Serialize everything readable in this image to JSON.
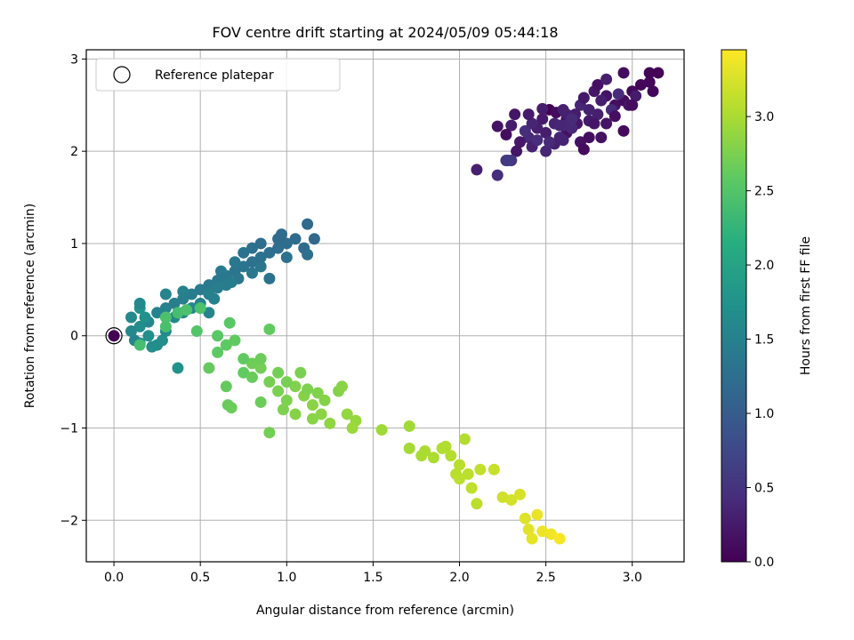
{
  "chart_data": {
    "type": "scatter",
    "title": "FOV centre drift starting at 2024/05/09 05:44:18",
    "xlabel": "Angular distance from reference (arcmin)",
    "ylabel": "Rotation from reference (arcmin)",
    "xlim": [
      -0.16,
      3.3
    ],
    "ylim": [
      -2.45,
      3.1
    ],
    "xticks": [
      0.0,
      0.5,
      1.0,
      1.5,
      2.0,
      2.5,
      3.0
    ],
    "xtick_labels": [
      "0.0",
      "0.5",
      "1.0",
      "1.5",
      "2.0",
      "2.5",
      "3.0"
    ],
    "yticks": [
      -2,
      -1,
      0,
      1,
      2,
      3
    ],
    "ytick_labels": [
      "−2",
      "−1",
      "0",
      "1",
      "2",
      "3"
    ],
    "grid": true,
    "legend": {
      "position": "top-left",
      "entries": [
        "Reference platepar"
      ]
    },
    "colorbar": {
      "label": "Hours from first FF file",
      "range": [
        0.0,
        3.45
      ],
      "ticks": [
        0.0,
        0.5,
        1.0,
        1.5,
        2.0,
        2.5,
        3.0
      ],
      "tick_labels": [
        "0.0",
        "0.5",
        "1.0",
        "1.5",
        "2.0",
        "2.5",
        "3.0"
      ],
      "colormap": "viridis"
    },
    "reference_point": {
      "x": 0.0,
      "y": 0.0
    },
    "points": [
      {
        "x": 2.52,
        "y": 2.45,
        "h": 0.0
      },
      {
        "x": 2.62,
        "y": 2.35,
        "h": 0.05
      },
      {
        "x": 2.56,
        "y": 2.42,
        "h": 0.1
      },
      {
        "x": 2.62,
        "y": 2.2,
        "h": 0.15
      },
      {
        "x": 2.68,
        "y": 2.3,
        "h": 0.2
      },
      {
        "x": 2.75,
        "y": 2.33,
        "h": 0.25
      },
      {
        "x": 2.8,
        "y": 2.4,
        "h": 0.3
      },
      {
        "x": 2.58,
        "y": 2.15,
        "h": 0.35
      },
      {
        "x": 2.9,
        "y": 2.5,
        "h": 0.15
      },
      {
        "x": 2.95,
        "y": 2.55,
        "h": 0.1
      },
      {
        "x": 3.0,
        "y": 2.65,
        "h": 0.08
      },
      {
        "x": 3.05,
        "y": 2.72,
        "h": 0.05
      },
      {
        "x": 3.1,
        "y": 2.85,
        "h": 0.03
      },
      {
        "x": 3.15,
        "y": 2.85,
        "h": 0.02
      },
      {
        "x": 3.1,
        "y": 2.75,
        "h": 0.06
      },
      {
        "x": 3.12,
        "y": 2.65,
        "h": 0.07
      },
      {
        "x": 2.95,
        "y": 2.85,
        "h": 0.12
      },
      {
        "x": 2.85,
        "y": 2.6,
        "h": 0.18
      },
      {
        "x": 2.78,
        "y": 2.65,
        "h": 0.22
      },
      {
        "x": 2.82,
        "y": 2.55,
        "h": 0.28
      },
      {
        "x": 2.75,
        "y": 2.45,
        "h": 0.32
      },
      {
        "x": 2.7,
        "y": 2.5,
        "h": 0.36
      },
      {
        "x": 2.88,
        "y": 2.45,
        "h": 0.4
      },
      {
        "x": 2.92,
        "y": 2.62,
        "h": 0.42
      },
      {
        "x": 2.98,
        "y": 2.5,
        "h": 0.2
      },
      {
        "x": 3.02,
        "y": 2.6,
        "h": 0.25
      },
      {
        "x": 2.8,
        "y": 2.72,
        "h": 0.15
      },
      {
        "x": 2.85,
        "y": 2.78,
        "h": 0.3
      },
      {
        "x": 2.67,
        "y": 2.4,
        "h": 0.27
      },
      {
        "x": 2.6,
        "y": 2.28,
        "h": 0.38
      },
      {
        "x": 2.55,
        "y": 2.3,
        "h": 0.33
      },
      {
        "x": 2.5,
        "y": 2.2,
        "h": 0.28
      },
      {
        "x": 2.48,
        "y": 2.35,
        "h": 0.24
      },
      {
        "x": 2.45,
        "y": 2.25,
        "h": 0.3
      },
      {
        "x": 2.42,
        "y": 2.3,
        "h": 0.35
      },
      {
        "x": 2.4,
        "y": 2.15,
        "h": 0.4
      },
      {
        "x": 2.38,
        "y": 2.22,
        "h": 0.44
      },
      {
        "x": 2.35,
        "y": 2.1,
        "h": 0.22
      },
      {
        "x": 2.3,
        "y": 2.28,
        "h": 0.26
      },
      {
        "x": 2.22,
        "y": 2.27,
        "h": 0.18
      },
      {
        "x": 2.27,
        "y": 2.18,
        "h": 0.14
      },
      {
        "x": 2.33,
        "y": 2.0,
        "h": 0.2
      },
      {
        "x": 2.42,
        "y": 2.05,
        "h": 0.32
      },
      {
        "x": 2.5,
        "y": 2.0,
        "h": 0.36
      },
      {
        "x": 2.55,
        "y": 2.08,
        "h": 0.31
      },
      {
        "x": 2.6,
        "y": 2.12,
        "h": 0.34
      },
      {
        "x": 2.65,
        "y": 2.25,
        "h": 0.39
      },
      {
        "x": 2.7,
        "y": 2.1,
        "h": 0.16
      },
      {
        "x": 2.75,
        "y": 2.15,
        "h": 0.12
      },
      {
        "x": 2.72,
        "y": 2.02,
        "h": 0.1
      },
      {
        "x": 2.78,
        "y": 2.3,
        "h": 0.21
      },
      {
        "x": 2.72,
        "y": 2.58,
        "h": 0.23
      },
      {
        "x": 2.85,
        "y": 2.3,
        "h": 0.19
      },
      {
        "x": 2.9,
        "y": 2.38,
        "h": 0.13
      },
      {
        "x": 2.95,
        "y": 2.22,
        "h": 0.09
      },
      {
        "x": 3.0,
        "y": 2.5,
        "h": 0.11
      },
      {
        "x": 2.82,
        "y": 2.15,
        "h": 0.17
      },
      {
        "x": 2.62,
        "y": 2.4,
        "h": 0.29
      },
      {
        "x": 2.58,
        "y": 2.28,
        "h": 0.37
      },
      {
        "x": 2.52,
        "y": 2.1,
        "h": 0.41
      },
      {
        "x": 2.45,
        "y": 2.12,
        "h": 0.43
      },
      {
        "x": 2.22,
        "y": 1.74,
        "h": 0.46
      },
      {
        "x": 2.27,
        "y": 1.9,
        "h": 0.5
      },
      {
        "x": 2.1,
        "y": 1.8,
        "h": 0.3
      },
      {
        "x": 2.3,
        "y": 1.9,
        "h": 0.55
      },
      {
        "x": 2.28,
        "y": 1.9,
        "h": 0.6
      },
      {
        "x": 2.32,
        "y": 2.4,
        "h": 0.2
      },
      {
        "x": 2.4,
        "y": 2.4,
        "h": 0.25
      },
      {
        "x": 2.48,
        "y": 2.46,
        "h": 0.27
      },
      {
        "x": 2.6,
        "y": 2.45,
        "h": 0.31
      },
      {
        "x": 2.65,
        "y": 2.35,
        "h": 0.4
      },
      {
        "x": 0.1,
        "y": 0.2,
        "h": 1.6
      },
      {
        "x": 0.15,
        "y": 0.1,
        "h": 1.65
      },
      {
        "x": 0.1,
        "y": 0.05,
        "h": 1.6
      },
      {
        "x": 0.12,
        "y": -0.05,
        "h": 1.55
      },
      {
        "x": 0.15,
        "y": -0.08,
        "h": 1.62
      },
      {
        "x": 0.2,
        "y": 0.15,
        "h": 1.58
      },
      {
        "x": 0.25,
        "y": 0.25,
        "h": 1.52
      },
      {
        "x": 0.3,
        "y": 0.3,
        "h": 1.5
      },
      {
        "x": 0.35,
        "y": 0.35,
        "h": 1.48
      },
      {
        "x": 0.4,
        "y": 0.4,
        "h": 1.46
      },
      {
        "x": 0.45,
        "y": 0.45,
        "h": 1.44
      },
      {
        "x": 0.5,
        "y": 0.5,
        "h": 1.42
      },
      {
        "x": 0.55,
        "y": 0.55,
        "h": 1.4
      },
      {
        "x": 0.6,
        "y": 0.6,
        "h": 1.38
      },
      {
        "x": 0.65,
        "y": 0.65,
        "h": 1.36
      },
      {
        "x": 0.7,
        "y": 0.7,
        "h": 1.34
      },
      {
        "x": 0.75,
        "y": 0.75,
        "h": 1.32
      },
      {
        "x": 0.8,
        "y": 0.8,
        "h": 1.3
      },
      {
        "x": 0.85,
        "y": 0.85,
        "h": 1.28
      },
      {
        "x": 0.9,
        "y": 0.9,
        "h": 1.26
      },
      {
        "x": 0.95,
        "y": 0.95,
        "h": 1.24
      },
      {
        "x": 1.0,
        "y": 1.0,
        "h": 1.22
      },
      {
        "x": 1.05,
        "y": 1.05,
        "h": 1.2
      },
      {
        "x": 1.12,
        "y": 1.21,
        "h": 1.18
      },
      {
        "x": 1.16,
        "y": 1.05,
        "h": 1.16
      },
      {
        "x": 1.1,
        "y": 0.95,
        "h": 1.2
      },
      {
        "x": 1.12,
        "y": 0.88,
        "h": 1.24
      },
      {
        "x": 0.97,
        "y": 1.1,
        "h": 1.22
      },
      {
        "x": 0.9,
        "y": 0.62,
        "h": 1.3
      },
      {
        "x": 0.85,
        "y": 0.75,
        "h": 1.34
      },
      {
        "x": 0.8,
        "y": 0.68,
        "h": 1.36
      },
      {
        "x": 0.7,
        "y": 0.8,
        "h": 1.38
      },
      {
        "x": 0.65,
        "y": 0.55,
        "h": 1.42
      },
      {
        "x": 0.6,
        "y": 0.52,
        "h": 1.46
      },
      {
        "x": 0.55,
        "y": 0.45,
        "h": 1.5
      },
      {
        "x": 0.5,
        "y": 0.35,
        "h": 1.52
      },
      {
        "x": 0.55,
        "y": 0.25,
        "h": 1.55
      },
      {
        "x": 0.45,
        "y": 0.3,
        "h": 1.58
      },
      {
        "x": 0.4,
        "y": 0.25,
        "h": 1.6
      },
      {
        "x": 0.35,
        "y": 0.2,
        "h": 1.62
      },
      {
        "x": 0.3,
        "y": 0.05,
        "h": 1.64
      },
      {
        "x": 0.25,
        "y": -0.1,
        "h": 1.66
      },
      {
        "x": 0.22,
        "y": -0.12,
        "h": 1.68
      },
      {
        "x": 0.2,
        "y": 0.0,
        "h": 1.7
      },
      {
        "x": 0.18,
        "y": 0.2,
        "h": 1.72
      },
      {
        "x": 0.15,
        "y": 0.3,
        "h": 1.74
      },
      {
        "x": 0.15,
        "y": 0.35,
        "h": 1.6
      },
      {
        "x": 0.28,
        "y": -0.05,
        "h": 1.7
      },
      {
        "x": 0.37,
        "y": -0.35,
        "h": 1.75
      },
      {
        "x": 0.3,
        "y": 0.45,
        "h": 1.54
      },
      {
        "x": 0.4,
        "y": 0.48,
        "h": 1.5
      },
      {
        "x": 0.62,
        "y": 0.7,
        "h": 1.4
      },
      {
        "x": 0.75,
        "y": 0.9,
        "h": 1.3
      },
      {
        "x": 0.8,
        "y": 0.95,
        "h": 1.25
      },
      {
        "x": 0.85,
        "y": 1.0,
        "h": 1.22
      },
      {
        "x": 0.95,
        "y": 1.05,
        "h": 1.2
      },
      {
        "x": 1.0,
        "y": 0.85,
        "h": 1.28
      },
      {
        "x": 0.72,
        "y": 0.62,
        "h": 1.36
      },
      {
        "x": 0.68,
        "y": 0.58,
        "h": 1.44
      },
      {
        "x": 0.58,
        "y": 0.4,
        "h": 1.5
      },
      {
        "x": 0.15,
        "y": -0.1,
        "h": 2.4
      },
      {
        "x": 0.3,
        "y": 0.2,
        "h": 2.45
      },
      {
        "x": 0.37,
        "y": 0.25,
        "h": 2.4
      },
      {
        "x": 0.42,
        "y": 0.28,
        "h": 2.45
      },
      {
        "x": 0.48,
        "y": 0.05,
        "h": 2.5
      },
      {
        "x": 0.6,
        "y": 0.0,
        "h": 2.55
      },
      {
        "x": 0.65,
        "y": -0.1,
        "h": 2.58
      },
      {
        "x": 0.7,
        "y": -0.05,
        "h": 2.6
      },
      {
        "x": 0.67,
        "y": 0.14,
        "h": 2.55
      },
      {
        "x": 0.75,
        "y": -0.4,
        "h": 2.6
      },
      {
        "x": 0.65,
        "y": -0.55,
        "h": 2.62
      },
      {
        "x": 0.66,
        "y": -0.75,
        "h": 2.64
      },
      {
        "x": 0.68,
        "y": -0.78,
        "h": 2.66
      },
      {
        "x": 0.8,
        "y": -0.3,
        "h": 2.68
      },
      {
        "x": 0.85,
        "y": -0.35,
        "h": 2.7
      },
      {
        "x": 0.9,
        "y": -0.5,
        "h": 2.72
      },
      {
        "x": 0.9,
        "y": 0.07,
        "h": 2.6
      },
      {
        "x": 0.95,
        "y": -0.6,
        "h": 2.74
      },
      {
        "x": 1.0,
        "y": -0.7,
        "h": 2.76
      },
      {
        "x": 1.05,
        "y": -0.55,
        "h": 2.78
      },
      {
        "x": 1.1,
        "y": -0.65,
        "h": 2.8
      },
      {
        "x": 1.15,
        "y": -0.75,
        "h": 2.82
      },
      {
        "x": 1.2,
        "y": -0.85,
        "h": 2.84
      },
      {
        "x": 1.25,
        "y": -0.95,
        "h": 2.86
      },
      {
        "x": 1.3,
        "y": -0.6,
        "h": 2.8
      },
      {
        "x": 1.32,
        "y": -0.55,
        "h": 2.82
      },
      {
        "x": 1.35,
        "y": -0.85,
        "h": 2.88
      },
      {
        "x": 1.4,
        "y": -0.92,
        "h": 2.9
      },
      {
        "x": 1.38,
        "y": -1.0,
        "h": 2.92
      },
      {
        "x": 1.55,
        "y": -1.02,
        "h": 2.94
      },
      {
        "x": 1.71,
        "y": -0.98,
        "h": 2.96
      },
      {
        "x": 1.71,
        "y": -1.22,
        "h": 2.98
      },
      {
        "x": 1.78,
        "y": -1.3,
        "h": 3.0
      },
      {
        "x": 1.85,
        "y": -1.32,
        "h": 3.02
      },
      {
        "x": 1.9,
        "y": -1.22,
        "h": 3.04
      },
      {
        "x": 1.95,
        "y": -1.3,
        "h": 3.06
      },
      {
        "x": 2.0,
        "y": -1.4,
        "h": 3.08
      },
      {
        "x": 2.03,
        "y": -1.12,
        "h": 3.05
      },
      {
        "x": 2.05,
        "y": -1.5,
        "h": 3.1
      },
      {
        "x": 2.07,
        "y": -1.65,
        "h": 3.12
      },
      {
        "x": 2.1,
        "y": -1.82,
        "h": 3.1
      },
      {
        "x": 2.12,
        "y": -1.45,
        "h": 3.14
      },
      {
        "x": 2.2,
        "y": -1.45,
        "h": 3.16
      },
      {
        "x": 2.25,
        "y": -1.75,
        "h": 3.2
      },
      {
        "x": 2.3,
        "y": -1.78,
        "h": 3.22
      },
      {
        "x": 2.35,
        "y": -1.72,
        "h": 3.24
      },
      {
        "x": 2.38,
        "y": -1.98,
        "h": 3.28
      },
      {
        "x": 2.4,
        "y": -2.1,
        "h": 3.3
      },
      {
        "x": 2.42,
        "y": -2.2,
        "h": 3.32
      },
      {
        "x": 2.45,
        "y": -1.94,
        "h": 3.34
      },
      {
        "x": 2.48,
        "y": -2.12,
        "h": 3.36
      },
      {
        "x": 2.53,
        "y": -2.15,
        "h": 3.38
      },
      {
        "x": 2.58,
        "y": -2.2,
        "h": 3.42
      },
      {
        "x": 0.85,
        "y": -0.72,
        "h": 2.66
      },
      {
        "x": 0.9,
        "y": -1.05,
        "h": 2.7
      },
      {
        "x": 0.6,
        "y": -0.18,
        "h": 2.58
      },
      {
        "x": 0.55,
        "y": -0.35,
        "h": 2.62
      },
      {
        "x": 0.85,
        "y": -0.25,
        "h": 2.66
      },
      {
        "x": 0.95,
        "y": -0.4,
        "h": 2.7
      },
      {
        "x": 1.0,
        "y": -0.5,
        "h": 2.72
      },
      {
        "x": 1.08,
        "y": -0.4,
        "h": 2.74
      },
      {
        "x": 1.12,
        "y": -0.58,
        "h": 2.76
      },
      {
        "x": 1.18,
        "y": -0.62,
        "h": 2.78
      },
      {
        "x": 1.22,
        "y": -0.7,
        "h": 2.8
      },
      {
        "x": 1.15,
        "y": -0.9,
        "h": 2.82
      },
      {
        "x": 0.98,
        "y": -0.8,
        "h": 2.76
      },
      {
        "x": 0.8,
        "y": -0.45,
        "h": 2.64
      },
      {
        "x": 0.75,
        "y": -0.25,
        "h": 2.6
      },
      {
        "x": 1.05,
        "y": -0.85,
        "h": 2.8
      },
      {
        "x": 1.8,
        "y": -1.25,
        "h": 3.0
      },
      {
        "x": 1.92,
        "y": -1.2,
        "h": 3.04
      },
      {
        "x": 1.98,
        "y": -1.5,
        "h": 3.08
      },
      {
        "x": 2.0,
        "y": -1.55,
        "h": 3.1
      },
      {
        "x": 0.3,
        "y": 0.1,
        "h": 2.42
      },
      {
        "x": 0.5,
        "y": 0.3,
        "h": 2.44
      }
    ]
  }
}
